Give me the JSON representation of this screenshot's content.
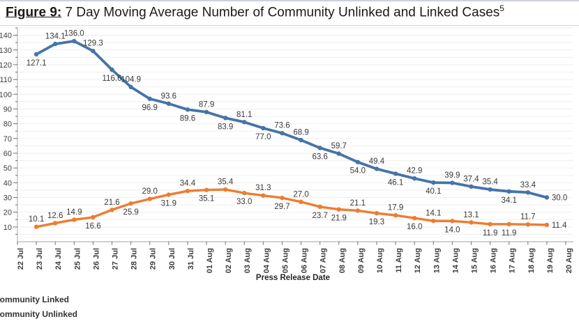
{
  "figure": {
    "title_prefix": "Figure 9:",
    "title_text": " 7 Day Moving Average Number of Community Unlinked and Linked Cases",
    "title_superscript": "5"
  },
  "chart_data": {
    "type": "line",
    "title": "Figure 9: 7 Day Moving Average Number of Community Unlinked and Linked Cases",
    "xlabel": "Press Release Date",
    "ylabel": "",
    "ylim": [
      0,
      145
    ],
    "ytick_interval": 10,
    "ytick_minor_interval": 5,
    "ytick_labels": [
      10,
      20,
      30,
      40,
      50,
      60,
      70,
      80,
      90,
      100,
      110,
      120,
      130,
      140
    ],
    "grid": true,
    "legend_position": "bottom-left",
    "legend_clipped_at_left_edge": true,
    "categories": [
      "22 Jul",
      "23 Jul",
      "24 Jul",
      "25 Jul",
      "26 Jul",
      "27 Jul",
      "28 Jul",
      "29 Jul",
      "30 Jul",
      "31 Jul",
      "01 Aug",
      "02 Aug",
      "03 Aug",
      "04 Aug",
      "05 Aug",
      "06 Aug",
      "07 Aug",
      "08 Aug",
      "09 Aug",
      "10 Aug",
      "11 Aug",
      "12 Aug",
      "13 Aug",
      "14 Aug",
      "15 Aug",
      "16 Aug",
      "17 Aug",
      "18 Aug",
      "19 Aug",
      "20 Aug"
    ],
    "series_start_category_index": 1,
    "series": [
      {
        "name": "Community Linked",
        "color": "#4574a7",
        "values": [
          127.1,
          134.1,
          136.0,
          129.3,
          116.6,
          104.9,
          96.9,
          93.6,
          89.6,
          87.9,
          83.9,
          81.1,
          77.0,
          73.6,
          68.9,
          63.6,
          59.7,
          54.0,
          49.4,
          46.1,
          42.9,
          40.1,
          39.9,
          37.4,
          35.4,
          34.1,
          33.4,
          30.0
        ],
        "label_positions": [
          "below",
          "above",
          "above",
          "above",
          "below",
          "above",
          "below",
          "above",
          "below",
          "above",
          "below",
          "above",
          "below",
          "above",
          "above",
          "below",
          "above",
          "below",
          "above",
          "below",
          "above",
          "below",
          "above",
          "above",
          "above",
          "below",
          "above",
          "right"
        ]
      },
      {
        "name": "Community Unlinked",
        "color": "#ed7d31",
        "values": [
          10.1,
          12.6,
          14.9,
          16.6,
          21.6,
          25.9,
          29.0,
          31.9,
          34.4,
          35.1,
          35.4,
          33.0,
          31.3,
          29.7,
          27.0,
          23.7,
          21.9,
          21.1,
          19.3,
          17.9,
          16.0,
          14.1,
          14.0,
          13.1,
          11.9,
          11.9,
          11.7,
          11.4
        ],
        "label_positions": [
          "above",
          "above",
          "above",
          "below",
          "above",
          "below",
          "above",
          "below",
          "above",
          "below",
          "above",
          "below",
          "above",
          "below",
          "above",
          "below",
          "below",
          "above",
          "below",
          "above",
          "below",
          "above",
          "below",
          "above",
          "below",
          "below",
          "above",
          "right"
        ]
      }
    ]
  },
  "legend": {
    "items": [
      {
        "label": "Community Linked"
      },
      {
        "label": "Community Unlinked"
      }
    ]
  },
  "colors": {
    "grid": "#efefef",
    "axis_line": "#b3b3b3",
    "tick": "#6f6f6f",
    "tick_text": "#3d3d3d",
    "data_label_text": "#3a3a3a"
  }
}
